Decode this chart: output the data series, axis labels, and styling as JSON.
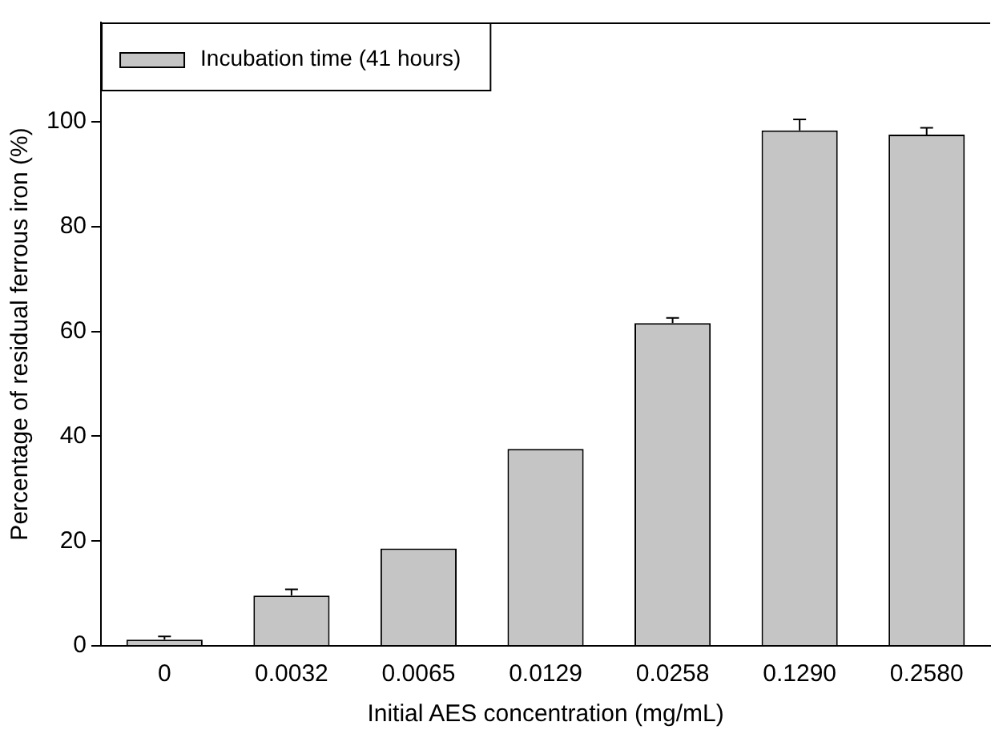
{
  "chart_data": {
    "type": "bar",
    "xlabel": "Initial AES concentration (mg/mL)",
    "ylabel": "Percentage of residual ferrous iron (%)",
    "categories": [
      "0",
      "0.0032",
      "0.0065",
      "0.0129",
      "0.0258",
      "0.1290",
      "0.2580"
    ],
    "series": [
      {
        "name": "Incubation time (41 hours)",
        "color": "#c4c5c4",
        "values": [
          1.2,
          9.6,
          18.6,
          37.6,
          61.6,
          98.4,
          97.6
        ],
        "errors": [
          0.6,
          1.2,
          null,
          null,
          1.0,
          2.1,
          1.3
        ]
      }
    ],
    "ylim": [
      0,
      119
    ],
    "yticks": [
      0,
      20,
      40,
      60,
      80,
      100
    ],
    "grid": false,
    "legend": "top left"
  }
}
